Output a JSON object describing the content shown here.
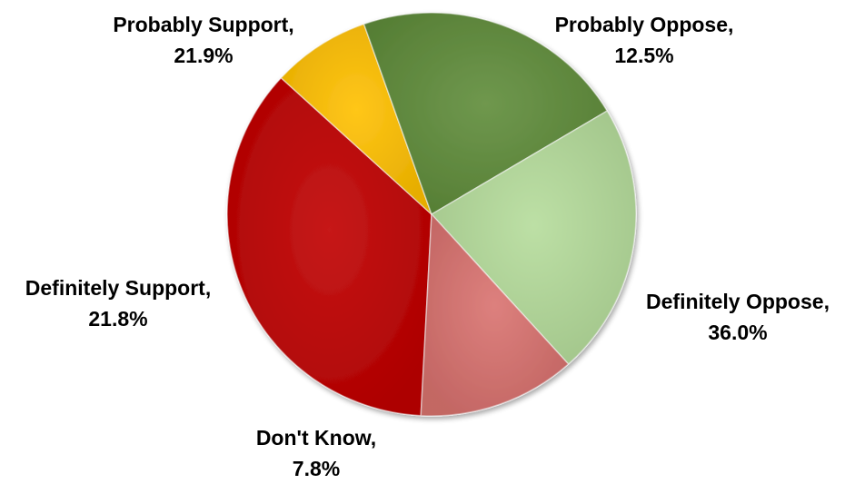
{
  "chart_data": {
    "type": "pie",
    "start_angle_deg": 93,
    "slices": [
      {
        "name": "Definitely Oppose",
        "label": "Definitely Oppose,",
        "value_label": "36.0%",
        "value": 36.0,
        "color": "#c00000"
      },
      {
        "name": "Don't Know",
        "label": "Don't Know,",
        "value_label": "7.8%",
        "value": 7.8,
        "color": "#ffc000"
      },
      {
        "name": "Definitely Support",
        "label": "Definitely Support,",
        "value_label": "21.8%",
        "value": 21.8,
        "color": "#5f8c3a"
      },
      {
        "name": "Probably Support",
        "label": "Probably Support,",
        "value_label": "21.9%",
        "value": 21.9,
        "color": "#b5dc9b"
      },
      {
        "name": "Probably Oppose",
        "label": "Probably Oppose,",
        "value_label": "12.5%",
        "value": 12.5,
        "color": "#d9726f"
      }
    ]
  }
}
